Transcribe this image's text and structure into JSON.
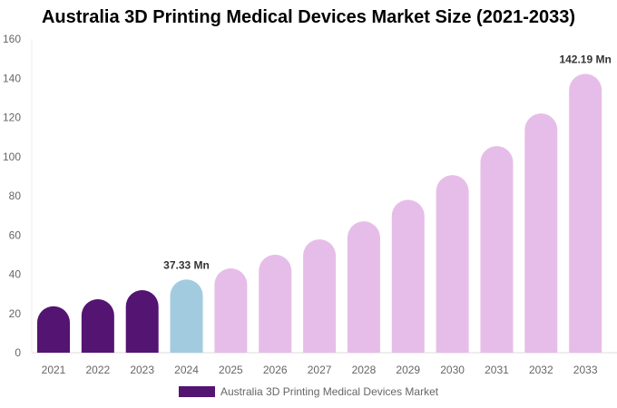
{
  "chart_data": {
    "type": "bar",
    "title": "Australia 3D Printing Medical Devices Market Size (2021-2033)",
    "categories": [
      "2021",
      "2022",
      "2023",
      "2024",
      "2025",
      "2026",
      "2027",
      "2028",
      "2029",
      "2030",
      "2031",
      "2032",
      "2033"
    ],
    "series": [
      {
        "name": "Australia 3D Printing Medical Devices Market",
        "values": [
          23.7,
          27.3,
          31.9,
          37.33,
          43.0,
          50.0,
          57.8,
          67.0,
          78.0,
          90.6,
          105.4,
          122.0,
          142.19
        ]
      }
    ],
    "data_labels": {
      "2024": "37.33 Mn",
      "2033": "142.19 Mn"
    },
    "bar_colors": {
      "historical": "#541472",
      "base_year": "#a2cbe0",
      "forecast": "#e6bde8"
    },
    "ylim": [
      0,
      160
    ],
    "yticks": [
      0,
      20,
      40,
      60,
      80,
      100,
      120,
      140,
      160
    ],
    "xlabel": "",
    "ylabel": "",
    "grid": false,
    "legend_position": "bottom"
  }
}
